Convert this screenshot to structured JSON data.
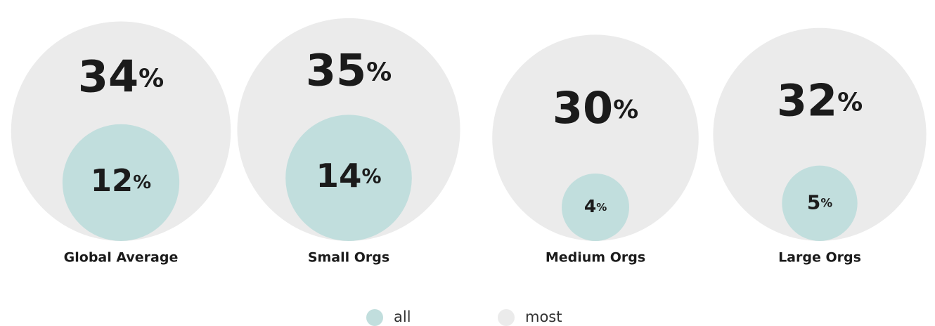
{
  "chart_data": {
    "type": "nested-bubble",
    "categories": [
      "Global Average",
      "Small Orgs",
      "Medium Orgs",
      "Large Orgs"
    ],
    "unit": "%",
    "series": [
      {
        "name": "all",
        "color": "#c1dedd",
        "values": [
          12,
          14,
          4,
          5
        ]
      },
      {
        "name": "most",
        "color": "#ebebeb",
        "values": [
          34,
          35,
          30,
          32
        ]
      }
    ]
  }
}
